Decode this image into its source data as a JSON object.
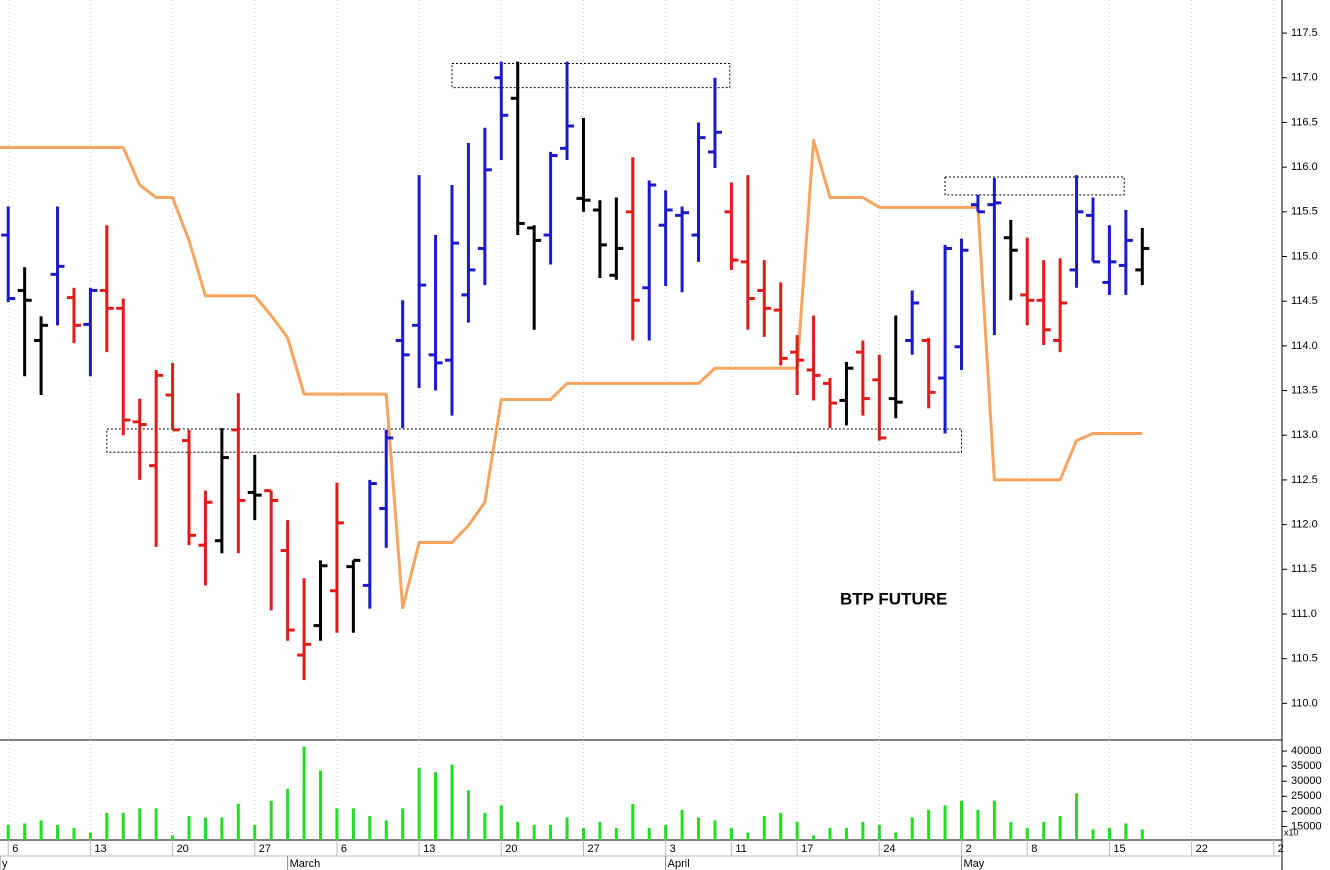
{
  "chart_data": [
    {
      "type": "ohlc",
      "title": "BTP FUTURE",
      "x": [
        0,
        1,
        2,
        3,
        4,
        5,
        6,
        7,
        8,
        9,
        10,
        11,
        12,
        13,
        14,
        15,
        16,
        17,
        18,
        19,
        20,
        21,
        22,
        23,
        24,
        25,
        26,
        27,
        28,
        29,
        30,
        31,
        32,
        33,
        34,
        35,
        36,
        37,
        38,
        39,
        40,
        41,
        42,
        43,
        44,
        45,
        46,
        47,
        48,
        49,
        50,
        51,
        52,
        53,
        54,
        55,
        56,
        57,
        58,
        59,
        60,
        61,
        62,
        63,
        64,
        65,
        66,
        67,
        68,
        69
      ],
      "open": [
        115.24,
        114.62,
        114.06,
        114.8,
        114.54,
        114.24,
        114.62,
        114.42,
        113.15,
        112.66,
        113.45,
        112.94,
        111.77,
        111.82,
        113.06,
        112.36,
        112.38,
        111.71,
        110.54,
        110.87,
        111.26,
        111.53,
        111.32,
        112.18,
        114.06,
        114.23,
        113.9,
        113.84,
        114.57,
        115.09,
        117.0,
        116.77,
        115.32,
        115.24,
        116.21,
        115.65,
        115.52,
        114.79,
        115.5,
        114.65,
        115.35,
        115.46,
        115.24,
        116.17,
        115.5,
        114.94,
        114.62,
        114.4,
        113.93,
        113.73,
        113.58,
        113.39,
        113.93,
        113.62,
        113.41,
        114.06,
        114.06,
        113.64,
        113.99,
        115.58,
        115.58,
        115.21,
        114.57,
        114.51,
        114.06,
        114.85,
        115.46,
        114.71,
        114.9,
        114.85
      ],
      "high": [
        115.56,
        114.88,
        114.33,
        115.56,
        114.65,
        114.65,
        115.35,
        114.53,
        113.41,
        113.73,
        113.81,
        113.06,
        112.38,
        113.08,
        113.47,
        112.78,
        112.38,
        112.05,
        111.4,
        111.6,
        112.47,
        111.6,
        112.5,
        113.06,
        114.51,
        115.91,
        115.24,
        115.8,
        116.27,
        116.44,
        117.18,
        117.18,
        115.35,
        116.17,
        117.18,
        116.55,
        115.63,
        115.66,
        116.11,
        115.85,
        115.74,
        115.56,
        116.5,
        117.0,
        115.83,
        115.91,
        114.96,
        114.71,
        114.12,
        114.34,
        113.64,
        113.82,
        114.06,
        113.9,
        114.34,
        114.62,
        114.09,
        115.13,
        115.2,
        115.69,
        115.88,
        115.41,
        115.21,
        114.96,
        114.98,
        115.91,
        115.66,
        115.35,
        115.52,
        115.32
      ],
      "low": [
        114.49,
        113.66,
        113.45,
        114.23,
        114.03,
        113.66,
        113.93,
        113.0,
        112.5,
        111.75,
        113.06,
        111.77,
        111.32,
        111.68,
        111.68,
        112.05,
        111.04,
        110.7,
        110.26,
        110.7,
        110.79,
        110.79,
        111.06,
        111.74,
        113.08,
        113.53,
        113.5,
        113.22,
        114.26,
        114.68,
        116.08,
        115.24,
        114.18,
        114.91,
        116.08,
        115.5,
        114.76,
        114.74,
        114.06,
        114.06,
        114.67,
        114.6,
        114.94,
        115.99,
        114.85,
        114.18,
        114.1,
        113.78,
        113.45,
        113.39,
        113.08,
        113.11,
        113.22,
        112.94,
        113.19,
        113.9,
        113.3,
        113.02,
        113.73,
        115.5,
        114.12,
        114.51,
        114.23,
        114.01,
        113.93,
        114.65,
        114.94,
        114.57,
        114.57,
        114.68
      ],
      "close": [
        114.53,
        114.51,
        114.23,
        114.89,
        114.23,
        114.62,
        114.42,
        113.17,
        113.12,
        113.67,
        113.06,
        111.88,
        112.25,
        112.75,
        112.27,
        112.33,
        112.27,
        110.82,
        110.66,
        111.54,
        112.02,
        111.6,
        112.46,
        112.97,
        113.9,
        114.68,
        113.81,
        115.15,
        114.85,
        115.97,
        116.58,
        115.37,
        115.18,
        116.13,
        116.46,
        115.63,
        115.13,
        115.09,
        114.51,
        115.8,
        115.52,
        115.49,
        116.33,
        116.39,
        114.96,
        114.53,
        114.42,
        113.86,
        113.84,
        113.67,
        113.36,
        113.75,
        113.41,
        112.97,
        113.37,
        114.48,
        113.48,
        115.09,
        115.07,
        115.5,
        115.6,
        115.07,
        114.51,
        114.18,
        114.48,
        115.5,
        114.94,
        114.94,
        115.18,
        115.09
      ],
      "colors": [
        "#1a1acc",
        "#000000",
        "#000000",
        "#1a1acc",
        "#e21a1a",
        "#1a1acc",
        "#e21a1a",
        "#e21a1a",
        "#e21a1a",
        "#e21a1a",
        "#e21a1a",
        "#e21a1a",
        "#e21a1a",
        "#000000",
        "#e21a1a",
        "#000000",
        "#e21a1a",
        "#e21a1a",
        "#e21a1a",
        "#000000",
        "#e21a1a",
        "#000000",
        "#1a1acc",
        "#1a1acc",
        "#1a1acc",
        "#1a1acc",
        "#1a1acc",
        "#1a1acc",
        "#1a1acc",
        "#1a1acc",
        "#1a1acc",
        "#000000",
        "#000000",
        "#1a1acc",
        "#1a1acc",
        "#000000",
        "#000000",
        "#000000",
        "#e21a1a",
        "#1a1acc",
        "#1a1acc",
        "#1a1acc",
        "#1a1acc",
        "#1a1acc",
        "#e21a1a",
        "#e21a1a",
        "#e21a1a",
        "#e21a1a",
        "#e21a1a",
        "#e21a1a",
        "#e21a1a",
        "#000000",
        "#e21a1a",
        "#e21a1a",
        "#000000",
        "#1a1acc",
        "#e21a1a",
        "#1a1acc",
        "#1a1acc",
        "#1a1acc",
        "#1a1acc",
        "#000000",
        "#e21a1a",
        "#e21a1a",
        "#e21a1a",
        "#1a1acc",
        "#1a1acc",
        "#1a1acc",
        "#1a1acc",
        "#000000"
      ],
      "lines": [
        {
          "color": "#f5a560",
          "x": [
            -0.5,
            7,
            8,
            9,
            10,
            11,
            12,
            15,
            16,
            17,
            18,
            23,
            24,
            25,
            27,
            28,
            29,
            30,
            33,
            34,
            42,
            43,
            48,
            49,
            50,
            52,
            53,
            59,
            60,
            64,
            65,
            66,
            69
          ],
          "values": [
            116.22,
            116.22,
            115.8,
            115.66,
            115.66,
            115.18,
            114.56,
            114.56,
            114.34,
            114.09,
            113.46,
            113.46,
            111.07,
            111.8,
            111.8,
            111.99,
            112.25,
            113.4,
            113.4,
            113.58,
            113.58,
            113.75,
            113.75,
            116.3,
            115.66,
            115.66,
            115.55,
            115.55,
            112.5,
            112.5,
            112.94,
            113.02,
            113.02
          ]
        }
      ],
      "boxes": [
        {
          "x": [
            27,
            43.9
          ],
          "y": [
            116.89,
            117.16
          ]
        },
        {
          "x": [
            6,
            58
          ],
          "y": [
            112.81,
            113.07
          ]
        },
        {
          "x": [
            57,
            67.9
          ],
          "y": [
            115.69,
            115.89
          ]
        }
      ],
      "xlim": [
        -0.5,
        77.5
      ],
      "ylim": [
        109.59,
        117.87
      ],
      "yticks": [
        {
          "value": 110,
          "label": "110.0"
        },
        {
          "value": 110.5,
          "label": "110.5"
        },
        {
          "value": 111,
          "label": "111.0"
        },
        {
          "value": 111.5,
          "label": "111.5"
        },
        {
          "value": 112,
          "label": "112.0"
        },
        {
          "value": 112.5,
          "label": "112.5"
        },
        {
          "value": 113,
          "label": "113.0"
        },
        {
          "value": 113.5,
          "label": "113.5"
        },
        {
          "value": 114,
          "label": "114.0"
        },
        {
          "value": 114.5,
          "label": "114.5"
        },
        {
          "value": 115,
          "label": "115.0"
        },
        {
          "value": 115.5,
          "label": "115.5"
        },
        {
          "value": 116,
          "label": "116.0"
        },
        {
          "value": 116.5,
          "label": "116.5"
        },
        {
          "value": 117,
          "label": "117.0"
        },
        {
          "value": 117.5,
          "label": "117.5"
        }
      ],
      "grid": true
    },
    {
      "type": "bar",
      "x": [
        0,
        1,
        2,
        3,
        4,
        5,
        6,
        7,
        8,
        9,
        10,
        11,
        12,
        13,
        14,
        15,
        16,
        17,
        18,
        19,
        20,
        21,
        22,
        23,
        24,
        25,
        26,
        27,
        28,
        29,
        30,
        31,
        32,
        33,
        34,
        35,
        36,
        37,
        38,
        39,
        40,
        41,
        42,
        43,
        44,
        45,
        46,
        47,
        48,
        49,
        50,
        51,
        52,
        53,
        54,
        55,
        56,
        57,
        58,
        59,
        60,
        61,
        62,
        63,
        64,
        65,
        66,
        67,
        68,
        69
      ],
      "values": [
        15500,
        16000,
        17000,
        15500,
        14500,
        13000,
        19500,
        19500,
        21000,
        21000,
        12000,
        18500,
        18000,
        18000,
        22500,
        15500,
        23500,
        27500,
        41500,
        33500,
        21000,
        21000,
        18500,
        17000,
        21000,
        34500,
        33000,
        35500,
        27000,
        19500,
        22000,
        16500,
        15500,
        15500,
        18000,
        14500,
        16500,
        14500,
        22500,
        14500,
        15500,
        20500,
        18000,
        17000,
        14500,
        13000,
        18500,
        19500,
        16500,
        12000,
        14500,
        14500,
        16500,
        15500,
        13000,
        18000,
        20500,
        22000,
        23500,
        20500,
        23500,
        16500,
        14500,
        16500,
        18500,
        26000,
        14000,
        14500,
        16000,
        14000
      ],
      "color": "#22dd22",
      "xlim": [
        -0.5,
        77.5
      ],
      "ylim": [
        10500,
        43000
      ],
      "yticks": [
        15000,
        20000,
        25000,
        30000,
        35000,
        40000
      ],
      "axis_note": "x10",
      "xticks": [
        {
          "value": 0,
          "label": "6"
        },
        {
          "value": 5,
          "label": "13"
        },
        {
          "value": 10,
          "label": "20"
        },
        {
          "value": 15,
          "label": "27"
        },
        {
          "value": 20,
          "label": "6"
        },
        {
          "value": 25,
          "label": "13"
        },
        {
          "value": 30,
          "label": "20"
        },
        {
          "value": 35,
          "label": "27"
        },
        {
          "value": 40,
          "label": "3"
        },
        {
          "value": 44,
          "label": "11"
        },
        {
          "value": 48,
          "label": "17"
        },
        {
          "value": 53,
          "label": "24"
        },
        {
          "value": 58,
          "label": "2"
        },
        {
          "value": 62,
          "label": "8"
        },
        {
          "value": 67,
          "label": "15"
        },
        {
          "value": 72,
          "label": "22"
        },
        {
          "value": 77,
          "label": "2"
        }
      ],
      "month_ticks": [
        {
          "value": -0.5,
          "label": "y"
        },
        {
          "value": 17,
          "label": "March"
        },
        {
          "value": 40,
          "label": "April"
        },
        {
          "value": 58,
          "label": "May"
        }
      ],
      "grid": true
    }
  ]
}
